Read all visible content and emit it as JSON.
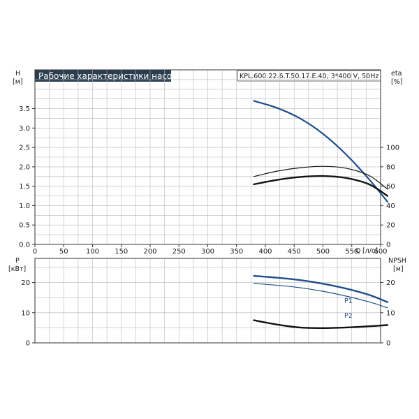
{
  "title": "Рабочие характеристики насоса",
  "model": "KPL.600.22.6.T.50.17.E.40, 3*400 V, 50Hz",
  "colors": {
    "blue": "#1f4e8c",
    "black": "#111111",
    "grid": "#b8b8b8",
    "title_bg": "#2b3e50"
  },
  "chart_data": [
    {
      "type": "line",
      "panel": "head-efficiency",
      "xlabel": "Q",
      "xunit": "[л/с]",
      "xlim": [
        0,
        600
      ],
      "xticks": [
        0,
        50,
        100,
        150,
        200,
        250,
        300,
        350,
        400,
        450,
        500,
        550,
        600
      ],
      "y_left": {
        "label": "H",
        "unit": "[м]",
        "lim": [
          0,
          4.5
        ],
        "ticks": [
          "0.0",
          "0.5",
          "1.0",
          "1.5",
          "2.0",
          "2.5",
          "3.0",
          "3.5"
        ]
      },
      "y_right": {
        "label": "eta",
        "unit": "[%]",
        "lim": [
          0,
          180
        ],
        "ticks": [
          "0",
          "20",
          "40",
          "60",
          "80",
          "100"
        ]
      },
      "series": [
        {
          "axis": "left",
          "color": "#1f4e8c",
          "width": 2.2,
          "x": [
            380,
            420,
            460,
            500,
            540,
            580,
            612
          ],
          "y": [
            3.7,
            3.52,
            3.25,
            2.85,
            2.32,
            1.68,
            1.1
          ]
        },
        {
          "axis": "right",
          "color": "#111111",
          "width": 1.2,
          "x": [
            380,
            420,
            460,
            500,
            540,
            580,
            612
          ],
          "y": [
            70,
            75.5,
            79,
            80.5,
            78.5,
            71,
            57
          ]
        },
        {
          "axis": "right",
          "color": "#111111",
          "width": 2.4,
          "x": [
            380,
            420,
            460,
            500,
            540,
            580,
            612
          ],
          "y": [
            62,
            66.5,
            69.5,
            70.5,
            68.5,
            62,
            50
          ]
        }
      ]
    },
    {
      "type": "line",
      "panel": "power-npsh",
      "xlim": [
        0,
        600
      ],
      "y_left": {
        "label": "P",
        "unit": "[кВт]",
        "lim": [
          0,
          28
        ],
        "ticks": [
          "0",
          "10",
          "20"
        ]
      },
      "y_right": {
        "label": "NPSH",
        "unit": "[м]",
        "lim": [
          0,
          28
        ],
        "ticks": [
          "0",
          "10",
          "20"
        ]
      },
      "series": [
        {
          "name": "P1",
          "axis": "left",
          "color": "#1f4e8c",
          "width": 2.4,
          "x": [
            380,
            420,
            460,
            500,
            540,
            580,
            612
          ],
          "y": [
            22.2,
            21.6,
            20.8,
            19.6,
            18.0,
            15.9,
            13.5
          ]
        },
        {
          "name": "P2",
          "axis": "left",
          "color": "#1f4e8c",
          "width": 1.2,
          "x": [
            380,
            420,
            460,
            500,
            540,
            580,
            612
          ],
          "y": [
            19.7,
            19.1,
            18.3,
            17.1,
            15.5,
            13.6,
            11.6
          ]
        },
        {
          "axis": "right",
          "color": "#111111",
          "width": 2.4,
          "x": [
            380,
            420,
            460,
            500,
            540,
            580,
            612
          ],
          "y": [
            7.5,
            6.1,
            5.1,
            4.9,
            5.1,
            5.5,
            5.9
          ]
        }
      ]
    }
  ]
}
